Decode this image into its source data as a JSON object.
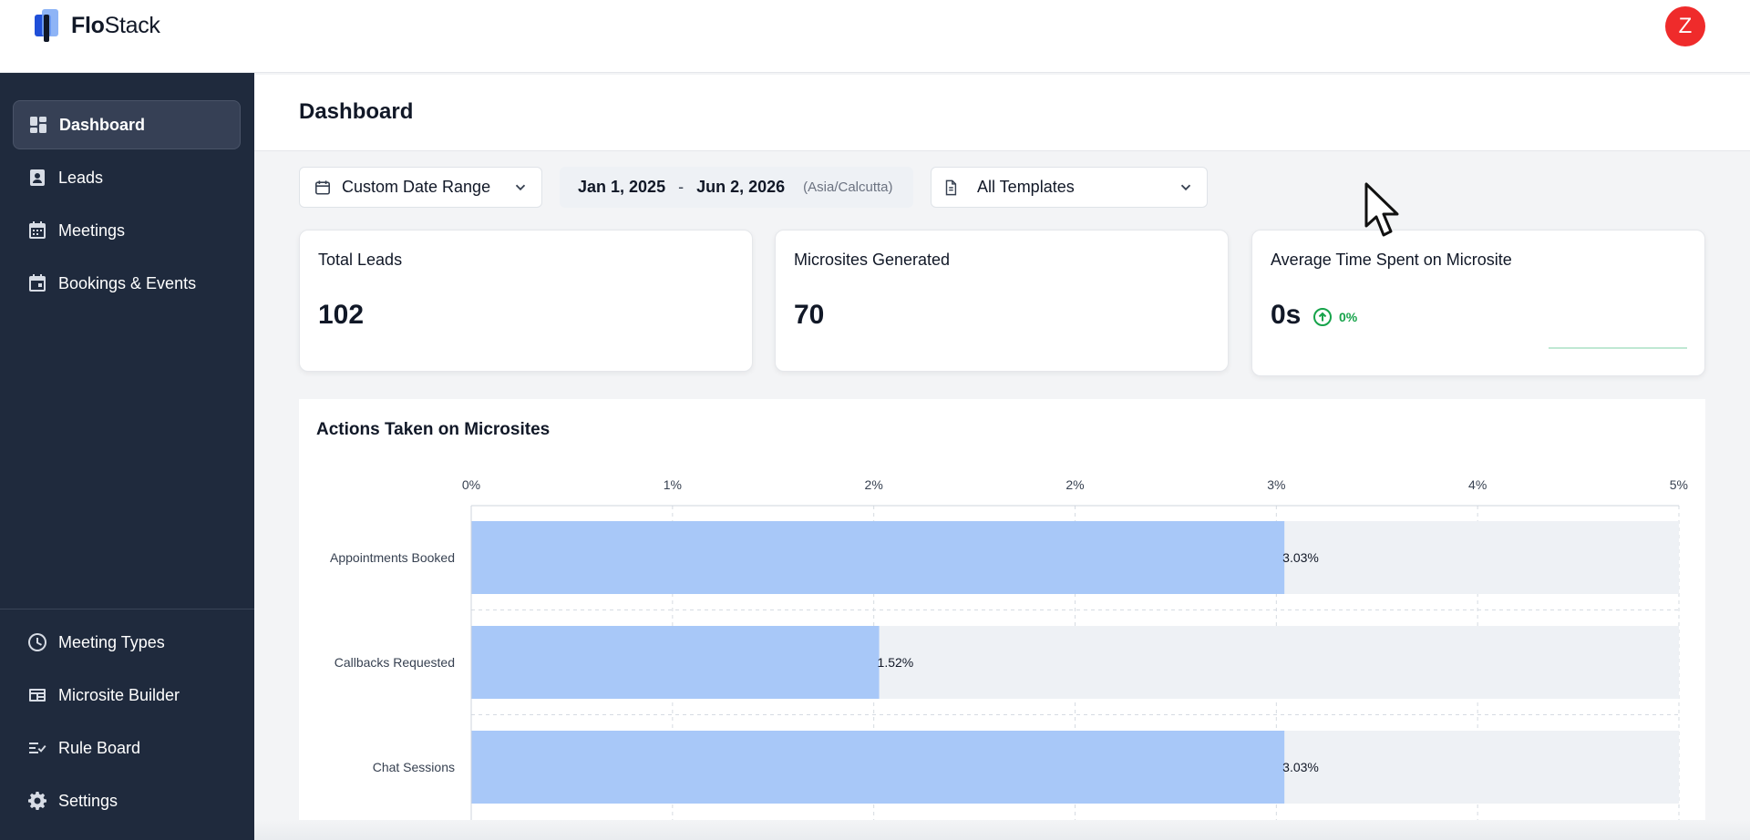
{
  "app": {
    "logo_bold": "Flo",
    "logo_regular": "Stack",
    "user_initial": "Z"
  },
  "sidebar": {
    "items": [
      {
        "label": "Dashboard",
        "icon": "dashboard-icon",
        "active": true
      },
      {
        "label": "Leads",
        "icon": "contact-icon"
      },
      {
        "label": "Meetings",
        "icon": "calendar-grid-icon"
      },
      {
        "label": "Bookings & Events",
        "icon": "calendar-event-icon"
      }
    ],
    "bottom_items": [
      {
        "label": "Meeting Types",
        "icon": "clock-icon"
      },
      {
        "label": "Microsite Builder",
        "icon": "layout-icon"
      },
      {
        "label": "Rule Board",
        "icon": "rules-icon"
      },
      {
        "label": "Settings",
        "icon": "gear-icon"
      }
    ]
  },
  "page": {
    "title": "Dashboard"
  },
  "filters": {
    "date_type": "Custom Date Range",
    "date_start": "Jan 1, 2025",
    "date_separator": "-",
    "date_end": "Jun 2, 2026",
    "timezone": "(Asia/Calcutta)",
    "templates": "All Templates"
  },
  "cards": [
    {
      "label": "Total Leads",
      "value": "102"
    },
    {
      "label": "Microsites Generated",
      "value": "70"
    },
    {
      "label": "Average Time Spent on Microsite",
      "value": "0s",
      "change": "0%"
    }
  ],
  "colors": {
    "sidebar_bg": "#1f2a3d",
    "bar_fill": "#a8c8f8",
    "bar_track": "#eef1f5",
    "avatar": "#ef2b2b",
    "positive": "#16a34a"
  },
  "chart_data": {
    "type": "bar",
    "orientation": "horizontal",
    "title": "Actions Taken on Microsites",
    "x_tick_labels": [
      "0%",
      "1%",
      "2%",
      "2%",
      "3%",
      "4%",
      "5%"
    ],
    "xlim": [
      0,
      4.5
    ],
    "categories": [
      "Appointments Booked",
      "Callbacks Requested",
      "Chat Sessions"
    ],
    "values": [
      3.03,
      1.52,
      3.03
    ],
    "data_labels": [
      "3.03%",
      "1.52%",
      "3.03%"
    ],
    "grid": true
  }
}
